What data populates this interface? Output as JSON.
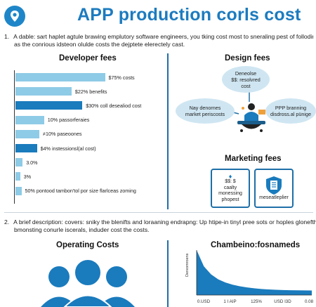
{
  "header": {
    "title": "APP production corls cost",
    "logo_icon": "location-pin-icon"
  },
  "intro": {
    "number": "1.",
    "line1": "A dable: sart haplet agtule brawing emplutory software engineers, you tking cost most to sneraling pest of folloding",
    "line2": "as the conrious idsteon olulde costs the dejptete elerectely cast."
  },
  "developer_fees": {
    "heading": "Developer fees",
    "bars": [
      {
        "label": "$75% costs",
        "value": 75,
        "color": "#8ecbe6"
      },
      {
        "label": "$22% benefits",
        "value": 47,
        "color": "#8ecbe6"
      },
      {
        "label": "$30% coll desealiod cost",
        "value": 56,
        "color": "#1a7bbd"
      },
      {
        "label": "10% passorferaies",
        "value": 24,
        "color": "#8ecbe6"
      },
      {
        "label": "≠10% paseoones",
        "value": 20,
        "color": "#8ecbe6"
      },
      {
        "label": "$4% instessionsl(al cost)",
        "value": 18,
        "color": "#1a7bbd"
      },
      {
        "label": "3.0%",
        "value": 6,
        "color": "#8ecbe6"
      },
      {
        "label": "3%",
        "value": 4,
        "color": "#8ecbe6"
      },
      {
        "label": "50% pontood tambon'tol por size flarlceas zoming",
        "value": 5,
        "color": "#8ecbe6"
      }
    ]
  },
  "design_fees": {
    "heading": "Design fees",
    "bubble_top": "Deneolse\n$$: resolvred\ncost",
    "bubble_left": "Nay denornes\nmarket periscosts",
    "bubble_right": "PPP branning\ndisdross.al pünige"
  },
  "marketing_fees": {
    "heading": "Marketing fees",
    "box1_icon": "money-cash-icon",
    "box1_text": "$$: $\ncaalty\nmonessing\nphopest",
    "box2_icon": "clipboard-shield-icon",
    "box2_text": "meseatleplier"
  },
  "description2": {
    "number": "2.",
    "line1": "A brief description: covers: sniky the blenifts and loraaning endrapng: Up htipe-in tinyl pree sots or hoples glonefthditte",
    "line2": "bmonsting conurle iscerals, induder cost the costs."
  },
  "operating_costs": {
    "heading": "Operating Costs",
    "icon": "people-group-icon"
  },
  "chart_section": {
    "heading": "Chambeino:fosnameds"
  },
  "chart_data": {
    "type": "area",
    "title": "Chambeino:fosnameds",
    "xlabel": "",
    "ylabel": "Dereomroens",
    "x_tick_labels": [
      "0.USD",
      "1 I AIP",
      "125%",
      "USD I3D",
      "0.08"
    ],
    "x": [
      0,
      1,
      2,
      3,
      4,
      5,
      6,
      7,
      8,
      9,
      10,
      11,
      12,
      13,
      14,
      15,
      16
    ],
    "y": [
      100,
      64,
      46,
      35,
      28,
      23,
      19.5,
      17,
      15,
      13.5,
      12.5,
      11.8,
      11.2,
      10.8,
      10.5,
      10.3,
      10.1
    ],
    "ylim": [
      0,
      100
    ],
    "color": "#1a7bbd"
  }
}
